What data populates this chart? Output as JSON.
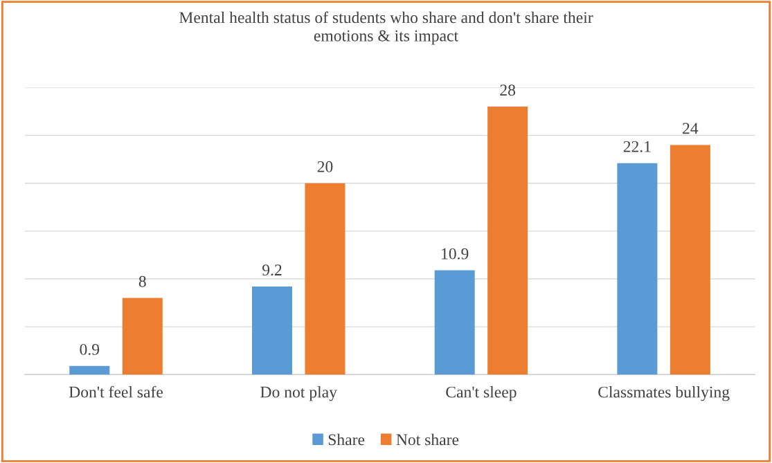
{
  "chart_data": {
    "type": "bar",
    "title": "Mental health status of students who share and don't share their\nemotions & its impact",
    "categories": [
      "Don't feel safe",
      "Do not play",
      "Can't sleep",
      "Classmates bullying"
    ],
    "series": [
      {
        "name": "Share",
        "color": "#5b9bd5",
        "values": [
          0.9,
          9.2,
          10.9,
          22.1
        ]
      },
      {
        "name": "Not share",
        "color": "#ed7d31",
        "values": [
          8,
          20,
          28,
          24
        ]
      }
    ],
    "ylim": [
      0,
      30
    ],
    "yticks": [
      {
        "value": 0,
        "label": null
      },
      {
        "value": 5,
        "label": null
      },
      {
        "value": 10,
        "label": null
      },
      {
        "value": 15,
        "label": null
      },
      {
        "value": 20,
        "label": null
      },
      {
        "value": 25,
        "label": null
      },
      {
        "value": 30,
        "label": null
      }
    ],
    "tick_labels": "x",
    "grid": "y",
    "data_labels": true,
    "legend": "bottom"
  }
}
